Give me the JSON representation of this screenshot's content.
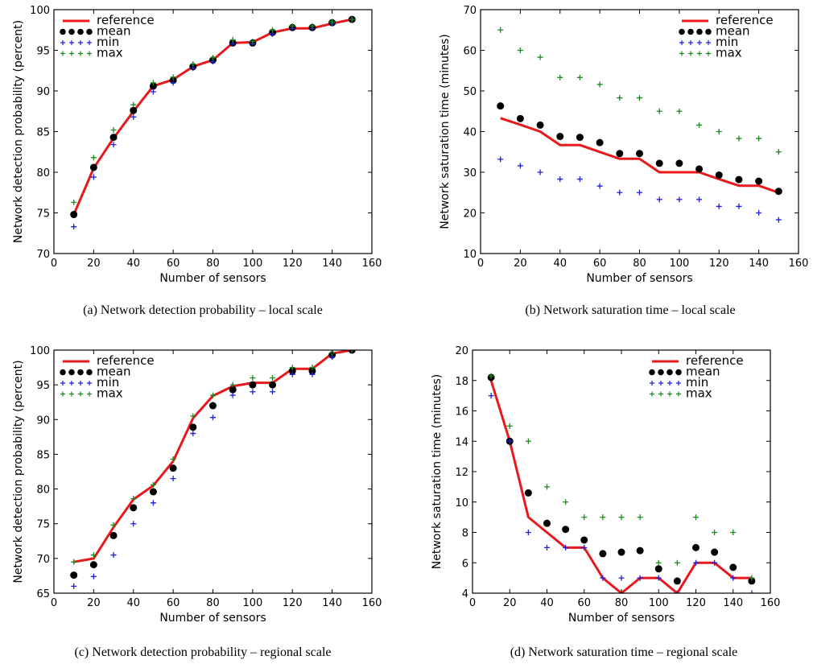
{
  "chart_data": [
    {
      "type": "line",
      "caption": "(a)  Network detection probability – local scale",
      "xlabel": "Number of sensors",
      "ylabel": "Network detection probability (percent)",
      "xlim": [
        0,
        160
      ],
      "ylim": [
        70,
        100
      ],
      "xticks": [
        "0",
        "20",
        "40",
        "60",
        "80",
        "100",
        "120",
        "140",
        "160"
      ],
      "yticks": [
        "70",
        "75",
        "80",
        "85",
        "90",
        "95",
        "100"
      ],
      "legend_position": "top-left",
      "x": [
        10,
        20,
        30,
        40,
        50,
        60,
        70,
        80,
        90,
        100,
        110,
        120,
        130,
        140,
        150
      ],
      "series": [
        {
          "name": "reference",
          "style": "line",
          "color": "#e8191c",
          "values": [
            74.8,
            80.5,
            84.2,
            87.5,
            90.6,
            91.4,
            93.0,
            93.8,
            95.9,
            96.0,
            97.2,
            97.7,
            97.7,
            98.3,
            98.8
          ]
        },
        {
          "name": "mean",
          "style": "dot",
          "color": "#000000",
          "values": [
            74.8,
            80.6,
            84.3,
            87.6,
            90.6,
            91.3,
            93.0,
            93.8,
            95.9,
            95.9,
            97.2,
            97.8,
            97.8,
            98.4,
            98.8
          ]
        },
        {
          "name": "min",
          "style": "plus",
          "color": "#1f1fe0",
          "values": [
            73.3,
            79.4,
            83.4,
            86.8,
            89.9,
            91.0,
            92.8,
            93.6,
            95.8,
            95.8,
            97.0,
            97.7,
            97.7,
            98.3,
            98.8
          ]
        },
        {
          "name": "max",
          "style": "plus",
          "color": "#1a8a1a",
          "values": [
            76.3,
            81.8,
            85.2,
            88.3,
            91.0,
            91.7,
            93.3,
            94.1,
            96.3,
            96.1,
            97.5,
            98.0,
            98.0,
            98.5,
            98.8
          ]
        }
      ]
    },
    {
      "type": "line",
      "caption": "(b)  Network saturation time – local scale",
      "xlabel": "Number of sensors",
      "ylabel": "Network saturation time (minutes)",
      "xlim": [
        0,
        160
      ],
      "ylim": [
        10,
        70
      ],
      "xticks": [
        "0",
        "20",
        "40",
        "60",
        "80",
        "100",
        "120",
        "140",
        "160"
      ],
      "yticks": [
        "10",
        "20",
        "30",
        "40",
        "50",
        "60",
        "70"
      ],
      "legend_position": "top-right",
      "x": [
        10,
        20,
        30,
        40,
        50,
        60,
        70,
        80,
        90,
        100,
        110,
        120,
        130,
        140,
        150
      ],
      "series": [
        {
          "name": "reference",
          "style": "line",
          "color": "#e8191c",
          "values": [
            43.3,
            41.7,
            40.0,
            36.7,
            36.7,
            35.0,
            33.3,
            33.3,
            30.0,
            30.0,
            30.0,
            28.3,
            26.7,
            26.7,
            25.0
          ]
        },
        {
          "name": "mean",
          "style": "dot",
          "color": "#000000",
          "values": [
            46.3,
            43.2,
            41.6,
            38.8,
            38.6,
            37.3,
            34.6,
            34.6,
            32.2,
            32.2,
            30.8,
            29.3,
            28.2,
            27.8,
            25.3
          ]
        },
        {
          "name": "min",
          "style": "plus",
          "color": "#1f1fe0",
          "values": [
            33.2,
            31.6,
            30.0,
            28.3,
            28.3,
            26.6,
            25.0,
            25.0,
            23.3,
            23.3,
            23.3,
            21.6,
            21.6,
            20.0,
            18.3
          ]
        },
        {
          "name": "max",
          "style": "plus",
          "color": "#1a8a1a",
          "values": [
            65.0,
            60.0,
            58.3,
            53.3,
            53.3,
            51.6,
            48.3,
            48.3,
            45.0,
            45.0,
            41.6,
            40.0,
            38.3,
            38.3,
            35.0
          ]
        }
      ]
    },
    {
      "type": "line",
      "caption": "(c)  Network detection probability – regional scale",
      "xlabel": "Number of sensors",
      "ylabel": "Network detection probability (percent)",
      "xlim": [
        0,
        160
      ],
      "ylim": [
        65,
        100
      ],
      "xticks": [
        "0",
        "20",
        "40",
        "60",
        "80",
        "100",
        "120",
        "140",
        "160"
      ],
      "yticks": [
        "65",
        "70",
        "75",
        "80",
        "85",
        "90",
        "95",
        "100"
      ],
      "legend_position": "top-left",
      "x": [
        10,
        20,
        30,
        40,
        50,
        60,
        70,
        80,
        90,
        100,
        110,
        120,
        130,
        140,
        150
      ],
      "series": [
        {
          "name": "reference",
          "style": "line",
          "color": "#e8191c",
          "values": [
            69.5,
            70.0,
            74.5,
            78.5,
            80.5,
            84.0,
            90.2,
            93.4,
            94.8,
            95.3,
            95.3,
            97.3,
            97.3,
            99.5,
            100.0
          ]
        },
        {
          "name": "mean",
          "style": "dot",
          "color": "#000000",
          "values": [
            67.6,
            69.1,
            73.3,
            77.3,
            79.6,
            83.0,
            88.9,
            92.0,
            94.3,
            95.0,
            95.0,
            97.0,
            97.0,
            99.3,
            100.0
          ]
        },
        {
          "name": "min",
          "style": "plus",
          "color": "#1f1fe0",
          "values": [
            66.0,
            67.4,
            70.5,
            75.0,
            78.0,
            81.5,
            88.0,
            90.3,
            93.5,
            94.0,
            94.0,
            96.5,
            96.5,
            99.0,
            100.0
          ]
        },
        {
          "name": "max",
          "style": "plus",
          "color": "#1a8a1a",
          "values": [
            69.5,
            70.5,
            74.8,
            78.6,
            80.6,
            84.3,
            90.5,
            93.5,
            95.0,
            96.0,
            96.0,
            97.5,
            97.5,
            99.6,
            100.0
          ]
        }
      ]
    },
    {
      "type": "line",
      "caption": "(d)  Network saturation time – regional scale",
      "xlabel": "Number of sensors",
      "ylabel": "Network saturation time (minutes)",
      "xlim": [
        0,
        160
      ],
      "ylim": [
        4,
        20
      ],
      "xticks": [
        "0",
        "20",
        "40",
        "60",
        "80",
        "100",
        "120",
        "140",
        "160"
      ],
      "yticks": [
        "4",
        "6",
        "8",
        "10",
        "12",
        "14",
        "16",
        "18",
        "20"
      ],
      "legend_position": "top-right",
      "x": [
        10,
        20,
        30,
        40,
        50,
        60,
        70,
        80,
        90,
        100,
        110,
        120,
        130,
        140,
        150
      ],
      "series": [
        {
          "name": "reference",
          "style": "line",
          "color": "#e8191c",
          "values": [
            18.0,
            14.0,
            9.0,
            8.0,
            7.0,
            7.0,
            5.0,
            4.0,
            5.0,
            5.0,
            4.0,
            6.0,
            6.0,
            5.0,
            5.0
          ]
        },
        {
          "name": "mean",
          "style": "dot",
          "color": "#000000",
          "values": [
            18.2,
            14.0,
            10.6,
            8.6,
            8.2,
            7.5,
            6.6,
            6.7,
            6.8,
            5.6,
            4.8,
            7.0,
            6.7,
            5.7,
            4.8
          ]
        },
        {
          "name": "min",
          "style": "plus",
          "color": "#1f1fe0",
          "values": [
            17.0,
            14.0,
            8.0,
            7.0,
            7.0,
            7.0,
            5.0,
            5.0,
            5.0,
            5.0,
            4.0,
            6.0,
            6.0,
            5.0,
            4.0
          ]
        },
        {
          "name": "max",
          "style": "plus",
          "color": "#1a8a1a",
          "values": [
            18.3,
            15.0,
            14.0,
            11.0,
            10.0,
            9.0,
            9.0,
            9.0,
            9.0,
            6.0,
            6.0,
            9.0,
            8.0,
            8.0,
            5.0
          ]
        }
      ]
    }
  ]
}
